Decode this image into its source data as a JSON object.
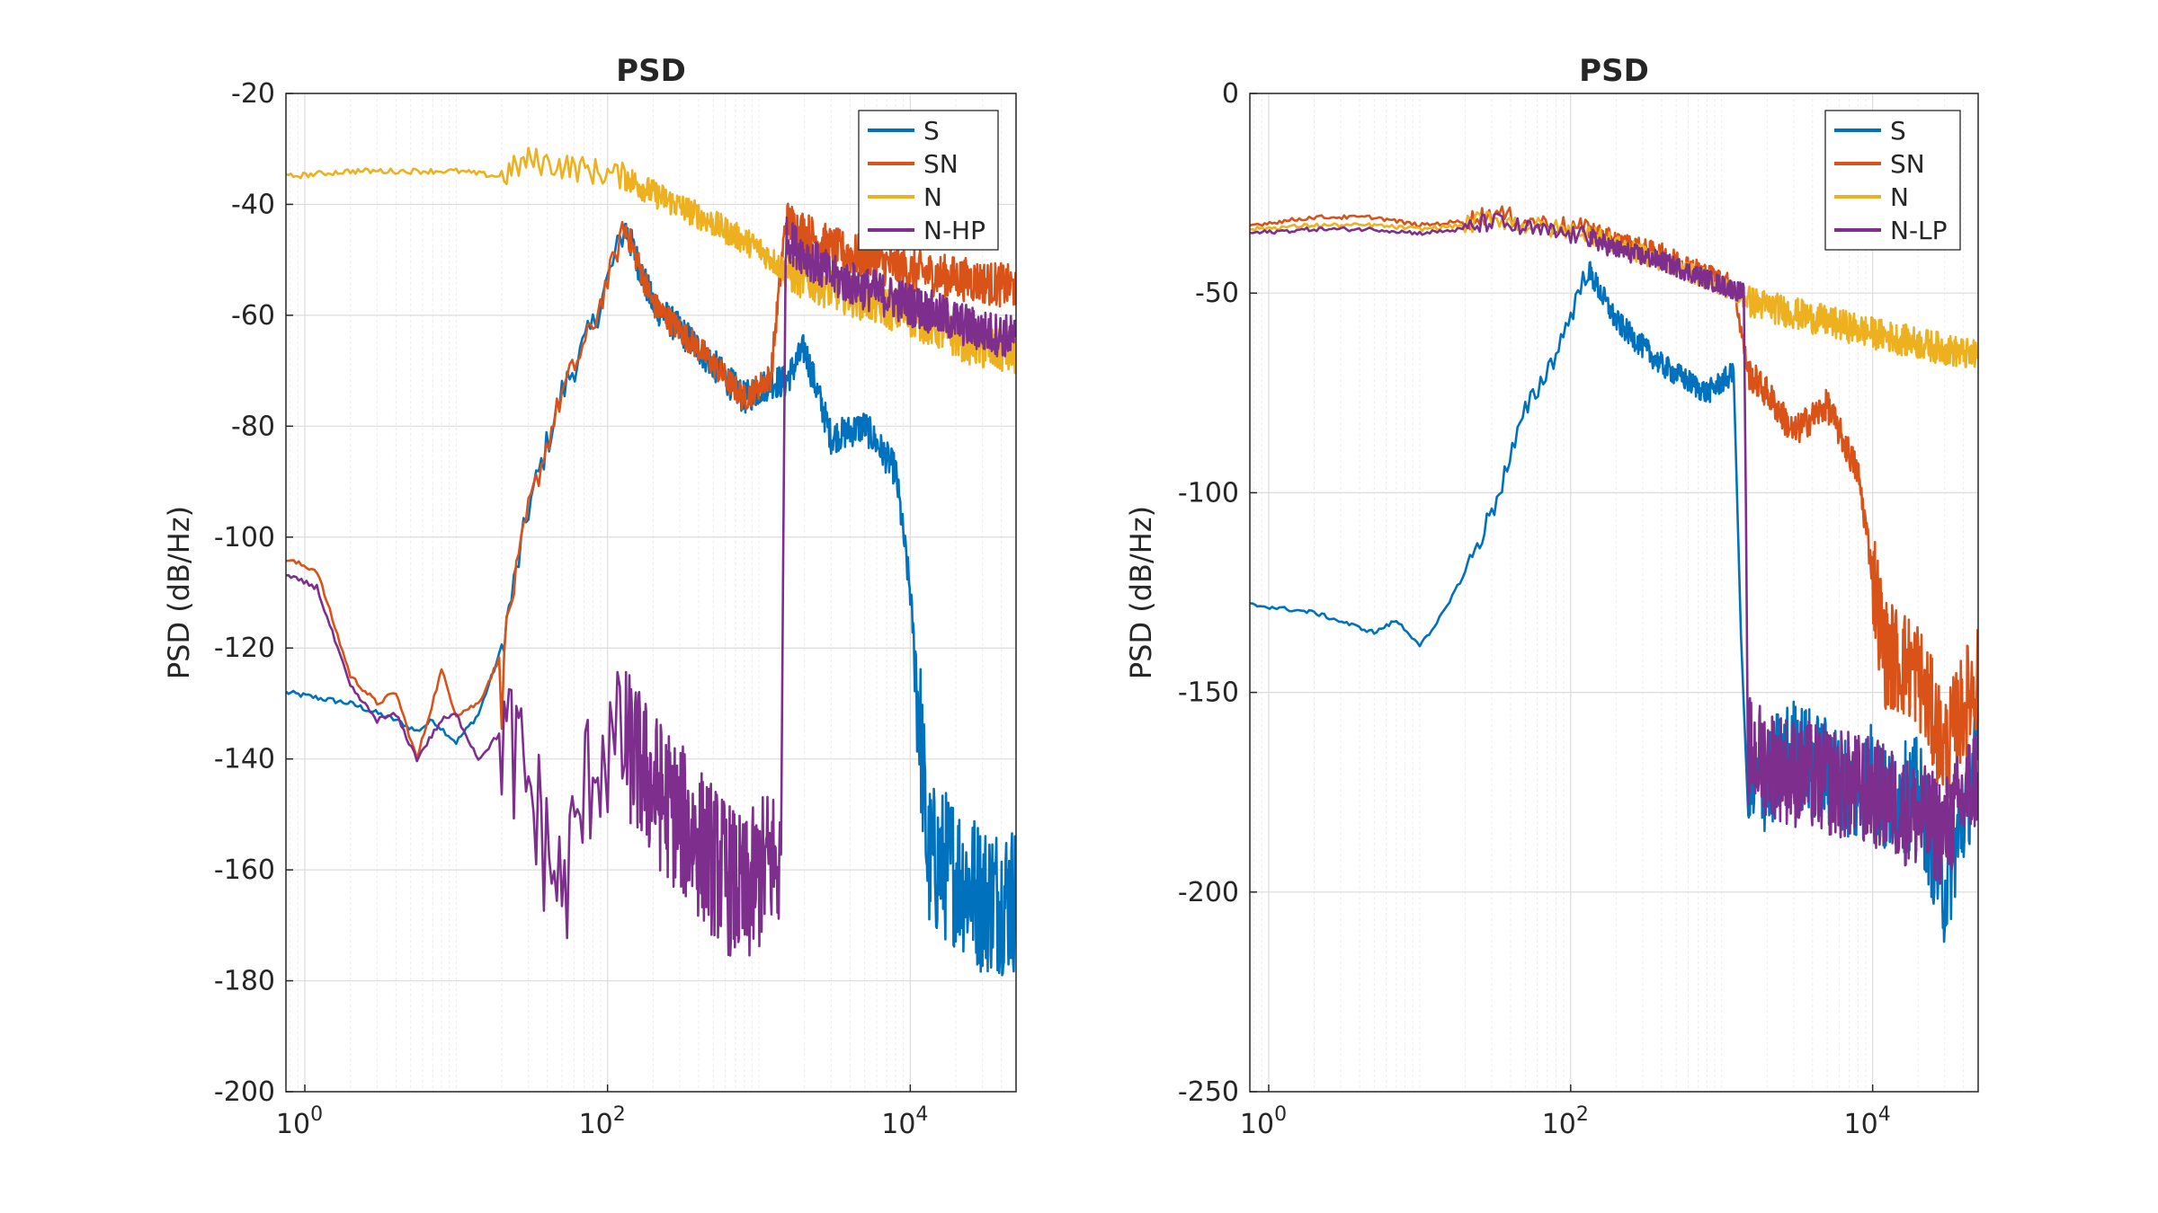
{
  "colors": {
    "S": "#0072BD",
    "SN": "#D95319",
    "N": "#EDB120",
    "N-HP": "#7E2F8E",
    "N-LP": "#7E2F8E"
  },
  "chart_data": [
    {
      "type": "line",
      "title": "PSD",
      "ylabel": "PSD (dB/Hz)",
      "xlabel": "",
      "xscale": "log",
      "xlim": [
        0.75,
        50000
      ],
      "ylim": [
        -200,
        -20
      ],
      "yticks": [
        -20,
        -40,
        -60,
        -80,
        -100,
        -120,
        -140,
        -160,
        -180,
        -200
      ],
      "xticks": [
        {
          "base": "10",
          "exp": "0"
        },
        {
          "base": "10",
          "exp": "2"
        },
        {
          "base": "10",
          "exp": "4"
        }
      ],
      "grid": true,
      "legend": "top-right",
      "legend_entries": [
        "S",
        "SN",
        "N",
        "N-HP"
      ],
      "series": [
        {
          "name": "S",
          "x": [
            0.75,
            2,
            4,
            5.5,
            7,
            10,
            14,
            20,
            30,
            50,
            80,
            130,
            200,
            400,
            800,
            1200,
            1500,
            2000,
            3000,
            5000,
            8000,
            10000,
            12000,
            13000,
            20000,
            30000,
            50000
          ],
          "y": [
            -128,
            -130,
            -133,
            -135,
            -133,
            -137,
            -132,
            -120,
            -95,
            -74,
            -62,
            -44,
            -58,
            -66,
            -75,
            -72,
            -72,
            -66,
            -82,
            -80,
            -88,
            -110,
            -140,
            -158,
            -160,
            -165,
            -165
          ]
        },
        {
          "name": "SN",
          "x": [
            0.75,
            1.2,
            2,
            3,
            4,
            5.5,
            8,
            10,
            14,
            20,
            30,
            50,
            80,
            130,
            200,
            400,
            800,
            1200,
            1500,
            3000,
            10000,
            30000,
            50000
          ],
          "y": [
            -104,
            -106,
            -125,
            -130,
            -128,
            -140,
            -124,
            -132,
            -130,
            -121,
            -95,
            -74,
            -62,
            -44,
            -58,
            -66,
            -75,
            -71,
            -43,
            -48,
            -52,
            -54,
            -55
          ]
        },
        {
          "name": "N",
          "x": [
            0.75,
            2,
            5,
            10,
            20,
            30,
            50,
            80,
            130,
            200,
            400,
            1000,
            1500,
            3000,
            10000,
            30000,
            50000
          ],
          "y": [
            -35,
            -34,
            -34,
            -34,
            -35,
            -32,
            -33,
            -34,
            -35,
            -38,
            -42,
            -48,
            -52,
            -55,
            -60,
            -66,
            -67
          ]
        },
        {
          "name": "N-HP",
          "x": [
            0.75,
            1.2,
            2,
            3,
            4,
            5.5,
            8,
            10,
            14,
            20,
            30,
            50,
            80,
            130,
            200,
            400,
            800,
            1200,
            1400,
            1500,
            3000,
            10000,
            30000,
            50000
          ],
          "y": [
            -107,
            -109,
            -127,
            -133,
            -132,
            -140,
            -133,
            -132,
            -140,
            -135,
            -145,
            -165,
            -140,
            -137,
            -145,
            -155,
            -165,
            -158,
            -160,
            -46,
            -53,
            -58,
            -63,
            -64
          ]
        }
      ]
    },
    {
      "type": "line",
      "title": "PSD",
      "ylabel": "PSD (dB/Hz)",
      "xlabel": "",
      "xscale": "log",
      "xlim": [
        0.75,
        50000
      ],
      "ylim": [
        -250,
        0
      ],
      "yticks": [
        0,
        -50,
        -100,
        -150,
        -200,
        -250
      ],
      "xticks": [
        {
          "base": "10",
          "exp": "0"
        },
        {
          "base": "10",
          "exp": "2"
        },
        {
          "base": "10",
          "exp": "4"
        }
      ],
      "grid": true,
      "legend": "top-right",
      "legend_entries": [
        "S",
        "SN",
        "N",
        "N-LP"
      ],
      "series": [
        {
          "name": "S",
          "x": [
            0.75,
            2,
            5,
            7,
            10,
            12,
            20,
            30,
            50,
            80,
            130,
            200,
            400,
            800,
            1200,
            1500,
            3000,
            8000,
            10000,
            12000,
            20000,
            30000,
            50000
          ],
          "y": [
            -128,
            -130,
            -135,
            -132,
            -138,
            -135,
            -120,
            -105,
            -80,
            -65,
            -44,
            -57,
            -68,
            -75,
            -70,
            -175,
            -165,
            -175,
            -170,
            -178,
            -175,
            -200,
            -165
          ]
        },
        {
          "name": "SN",
          "x": [
            0.75,
            2,
            5,
            10,
            20,
            30,
            50,
            80,
            130,
            200,
            400,
            800,
            1200,
            1500,
            2000,
            3000,
            5000,
            8000,
            10000,
            12000,
            20000,
            30000,
            50000
          ],
          "y": [
            -33,
            -31,
            -31,
            -33,
            -32,
            -30,
            -32,
            -33,
            -34,
            -37,
            -40,
            -45,
            -48,
            -70,
            -75,
            -85,
            -78,
            -95,
            -120,
            -140,
            -145,
            -165,
            -145
          ]
        },
        {
          "name": "N",
          "x": [
            0.75,
            2,
            5,
            10,
            20,
            30,
            50,
            80,
            130,
            200,
            400,
            1000,
            1500,
            3000,
            10000,
            30000,
            50000
          ],
          "y": [
            -34,
            -33,
            -33,
            -34,
            -33,
            -31,
            -33,
            -34,
            -35,
            -38,
            -42,
            -48,
            -52,
            -55,
            -60,
            -64,
            -66
          ]
        },
        {
          "name": "N-LP",
          "x": [
            0.75,
            2,
            5,
            10,
            20,
            30,
            50,
            80,
            130,
            200,
            400,
            1000,
            1400,
            1500,
            3000,
            10000,
            30000,
            50000
          ],
          "y": [
            -35,
            -34,
            -34,
            -35,
            -34,
            -32,
            -34,
            -35,
            -36,
            -39,
            -42,
            -48,
            -50,
            -165,
            -170,
            -175,
            -185,
            -170
          ]
        }
      ]
    }
  ]
}
